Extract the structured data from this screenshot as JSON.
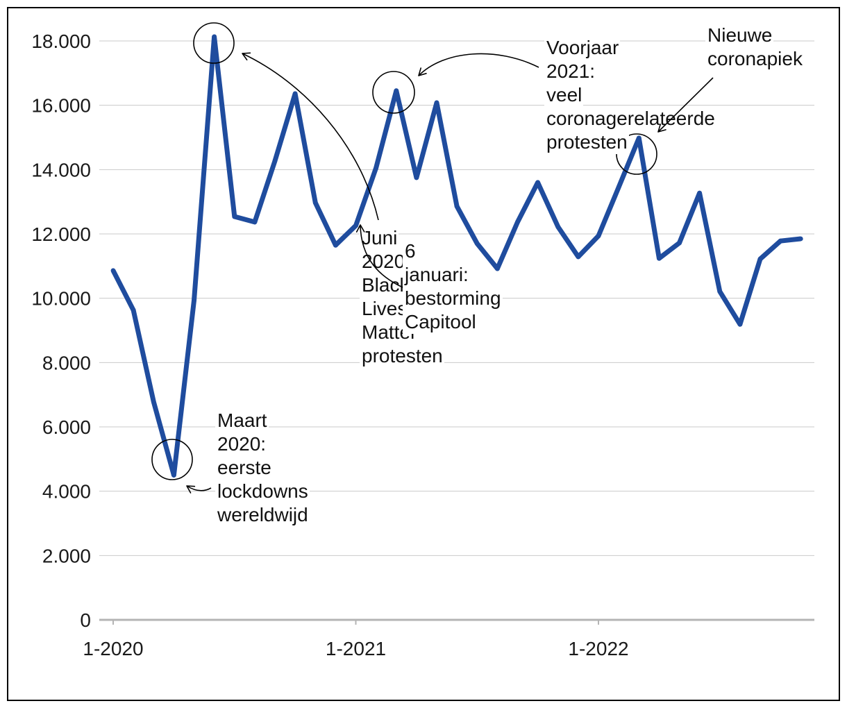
{
  "chart_data": {
    "type": "line",
    "x": [
      "1-2020",
      "2-2020",
      "3-2020",
      "4-2020",
      "5-2020",
      "6-2020",
      "7-2020",
      "8-2020",
      "9-2020",
      "10-2020",
      "11-2020",
      "12-2020",
      "1-2021",
      "2-2021",
      "3-2021",
      "4-2021",
      "5-2021",
      "6-2021",
      "7-2021",
      "8-2021",
      "9-2021",
      "10-2021",
      "11-2021",
      "12-2021",
      "1-2022",
      "2-2022",
      "3-2022",
      "4-2022",
      "5-2022",
      "6-2022",
      "7-2022",
      "8-2022",
      "9-2022",
      "10-2022",
      "11-2022"
    ],
    "series": [
      {
        "color": "#1f4c9e",
        "values": [
          10860,
          9630,
          6780,
          4500,
          9930,
          18130,
          12540,
          12370,
          14270,
          16360,
          12970,
          11650,
          12260,
          14050,
          16450,
          13750,
          16080,
          12860,
          11700,
          10920,
          12370,
          13600,
          12220,
          11290,
          11940,
          13450,
          14980,
          11240,
          11720,
          13270,
          10210,
          9190,
          11220,
          11780,
          11850
        ]
      }
    ],
    "xticks": [
      "1-2020",
      "1-2021",
      "1-2022"
    ],
    "yticks": [
      "0",
      "2.000",
      "4.000",
      "6.000",
      "8.000",
      "10.000",
      "12.000",
      "14.000",
      "16.000",
      "18.000"
    ],
    "ylim": [
      0,
      18000
    ],
    "grid": true,
    "annotations": [
      {
        "x": "4-2020",
        "circled": true,
        "lines": [
          "Maart",
          "2020:",
          "eerste",
          "lockdowns",
          "wereldwijd"
        ]
      },
      {
        "x": "6-2020",
        "circled": true,
        "lines": [
          "Juni",
          "2020:",
          "Black",
          "Lives",
          "Matter",
          "protesten"
        ]
      },
      {
        "x": "1-2021",
        "circled": false,
        "lines": [
          "6",
          "januari:",
          "bestorming",
          "Capitool"
        ]
      },
      {
        "x": "3-2021",
        "circled": true,
        "lines": [
          "Voorjaar",
          "2021:",
          "veel",
          "coronagerelateerde",
          "protesten"
        ]
      },
      {
        "x": "3-2022",
        "circled": true,
        "lines": [
          "Nieuwe",
          "coronapiek"
        ]
      }
    ]
  }
}
